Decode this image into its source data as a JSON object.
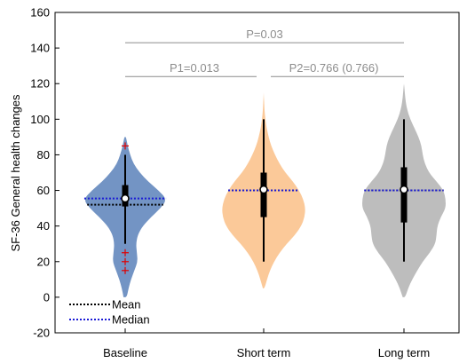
{
  "chart_data": {
    "type": "violin",
    "ylabel": "SF-36 General health changes",
    "ylim": [
      -20,
      160
    ],
    "yticks": [
      -20,
      0,
      20,
      40,
      60,
      80,
      100,
      120,
      140,
      160
    ],
    "categories": [
      "Baseline",
      "Short term",
      "Long term"
    ],
    "groups": [
      {
        "name": "Baseline",
        "color": "#7394c4",
        "range": [
          0,
          90
        ],
        "mean": 52,
        "median": 55.5,
        "center": 55.5,
        "q1": 51,
        "q3": 63,
        "whisker_low": 30,
        "whisker_high": 80,
        "outliers": [
          85,
          25,
          20,
          15
        ],
        "density": [
          0.04,
          0.08,
          0.14,
          0.22,
          0.3,
          0.28,
          0.26,
          0.3,
          0.42,
          0.62,
          0.85,
          1.0,
          0.8,
          0.55,
          0.35,
          0.2,
          0.12,
          0.06,
          0.02
        ]
      },
      {
        "name": "Short term",
        "color": "#fbc999",
        "range": [
          5,
          115
        ],
        "mean": 60,
        "median": 60,
        "center": 60.5,
        "q1": 45,
        "q3": 70,
        "whisker_low": 20,
        "whisker_high": 100,
        "outliers": [],
        "density": [
          0.02,
          0.08,
          0.15,
          0.25,
          0.38,
          0.55,
          0.75,
          0.9,
          0.98,
          1.0,
          0.95,
          0.85,
          0.7,
          0.52,
          0.38,
          0.27,
          0.18,
          0.12,
          0.07,
          0.04,
          0.02,
          0.01,
          0.0
        ]
      },
      {
        "name": "Long term",
        "color": "#bdbdbd",
        "range": [
          0,
          120
        ],
        "mean": 60,
        "median": 60,
        "center": 60.5,
        "q1": 42,
        "q3": 73,
        "whisker_low": 20,
        "whisker_high": 100,
        "outliers": [],
        "density": [
          0.03,
          0.1,
          0.2,
          0.32,
          0.45,
          0.62,
          0.75,
          0.78,
          0.8,
          0.88,
          1.0,
          1.0,
          0.95,
          0.78,
          0.6,
          0.5,
          0.45,
          0.42,
          0.35,
          0.25,
          0.15,
          0.08,
          0.04,
          0.02,
          0.0
        ]
      }
    ],
    "significance": [
      {
        "label": "P=0.03",
        "from": 0,
        "to": 2,
        "y": 143
      },
      {
        "label": "P1=0.013",
        "from": 0,
        "to": 1,
        "y": 124
      },
      {
        "label": "P2=0.766 (0.766)",
        "from": 1,
        "to": 2,
        "y": 124
      }
    ],
    "legend": [
      {
        "label": "Mean",
        "color": "#000000"
      },
      {
        "label": "Median",
        "color": "#1a1ad6"
      }
    ],
    "legend_position": "bottom-left",
    "grid": false
  }
}
